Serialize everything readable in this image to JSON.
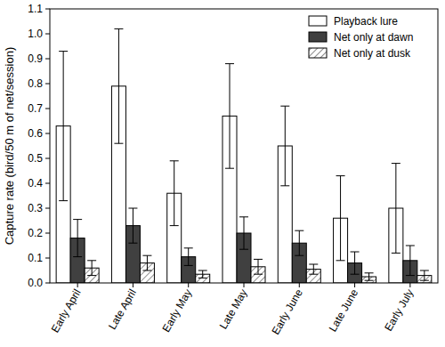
{
  "chart_data": {
    "type": "bar",
    "y_label": "Capture rate (bird/50 m of net/session)",
    "categories": [
      "Early April",
      "Late April",
      "Early May",
      "Late May",
      "Early June",
      "Late June",
      "Early July"
    ],
    "series": [
      {
        "name": "Playback lure",
        "color": "#ffffff",
        "values": [
          0.63,
          0.79,
          0.36,
          0.67,
          0.55,
          0.26,
          0.3
        ],
        "errors": [
          0.3,
          0.23,
          0.13,
          0.21,
          0.16,
          0.17,
          0.18
        ]
      },
      {
        "name": "Net only at dawn",
        "color": "#404040",
        "values": [
          0.18,
          0.23,
          0.105,
          0.2,
          0.16,
          0.08,
          0.09
        ],
        "errors": [
          0.075,
          0.07,
          0.035,
          0.065,
          0.05,
          0.045,
          0.06
        ]
      },
      {
        "name": "Net only at dusk",
        "color": "#404040",
        "line_style": "hatched",
        "values": [
          0.06,
          0.08,
          0.035,
          0.065,
          0.055,
          0.025,
          0.03
        ],
        "errors": [
          0.03,
          0.03,
          0.015,
          0.03,
          0.02,
          0.015,
          0.02
        ]
      }
    ],
    "ylim": [
      0,
      1.1
    ],
    "yticks": [
      {
        "value": 0,
        "label": "0.0"
      },
      0.1,
      0.2,
      0.3,
      0.4,
      0.5,
      0.6,
      0.7,
      0.8,
      0.9,
      {
        "value": 1,
        "label": "1.0"
      },
      1.1
    ],
    "legend": "upper right",
    "grid": false
  }
}
